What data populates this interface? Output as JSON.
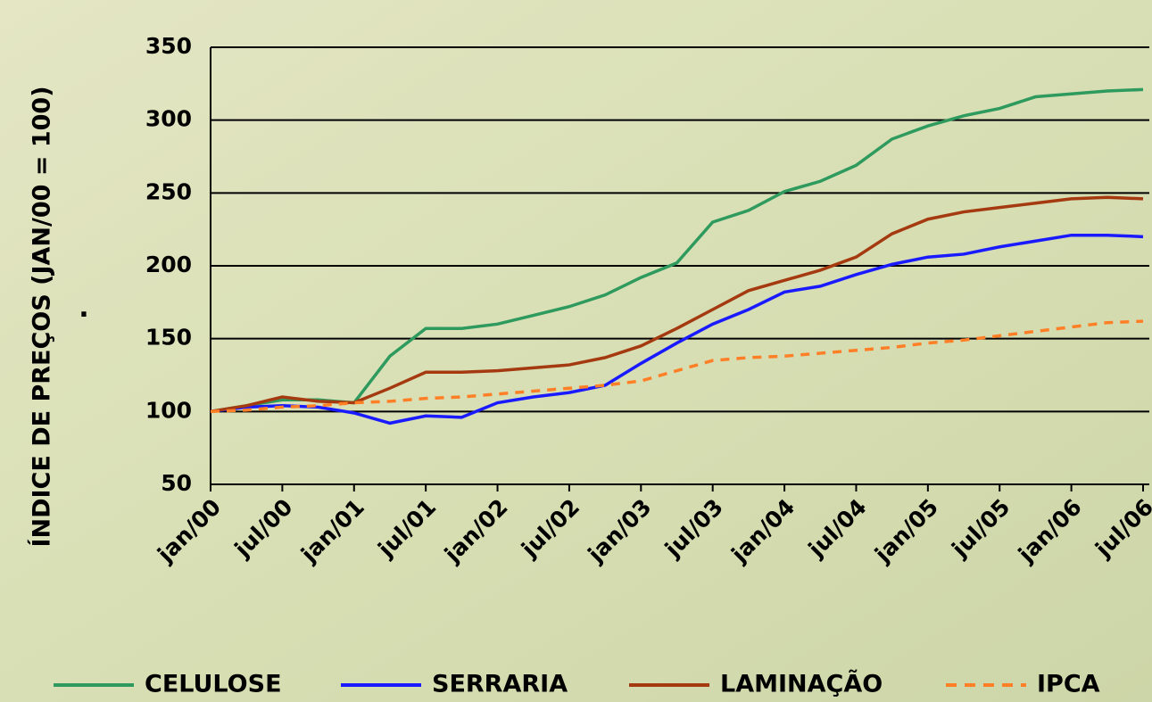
{
  "chart_data": {
    "type": "line",
    "y_label": "ÍNDICE DE PREÇOS (JAN/00 = 100)",
    "y_label_note": ".",
    "categories": [
      "jan/00",
      null,
      "jul/00",
      null,
      "jan/01",
      null,
      "jul/01",
      null,
      "jan/02",
      null,
      "jul/02",
      null,
      "jan/03",
      null,
      "jul/03",
      null,
      "jan/04",
      null,
      "jul/04",
      null,
      "jan/05",
      null,
      "jul/05",
      null,
      "jan/06",
      null,
      "jul/06"
    ],
    "ylim": [
      50,
      350
    ],
    "yticks": [
      50,
      100,
      150,
      200,
      250,
      300,
      350
    ],
    "grid": true,
    "legend": "bottom",
    "series": [
      {
        "name": "CELULOSE",
        "color": "#2e9a5e",
        "dash": false,
        "values": [
          100,
          104,
          108,
          108,
          106,
          138,
          157,
          157,
          160,
          166,
          172,
          180,
          192,
          202,
          230,
          238,
          251,
          258,
          269,
          287,
          296,
          303,
          308,
          316,
          318,
          320,
          321
        ]
      },
      {
        "name": "SERRARIA",
        "color": "#1a1aff",
        "dash": false,
        "values": [
          100,
          103,
          104,
          103,
          99,
          92,
          97,
          96,
          106,
          110,
          113,
          118,
          133,
          147,
          160,
          170,
          182,
          186,
          194,
          201,
          206,
          208,
          213,
          217,
          221,
          221,
          220
        ]
      },
      {
        "name": "LAMINAÇÃO",
        "color": "#a53a10",
        "dash": false,
        "values": [
          100,
          104,
          110,
          107,
          106,
          116,
          127,
          127,
          128,
          130,
          132,
          137,
          145,
          157,
          170,
          183,
          190,
          197,
          206,
          222,
          232,
          237,
          240,
          243,
          246,
          247,
          246
        ]
      },
      {
        "name": "IPCA",
        "color": "#ff7f27",
        "dash": true,
        "values": [
          100,
          101,
          103,
          104,
          106,
          107,
          109,
          110,
          112,
          114,
          116,
          118,
          121,
          128,
          135,
          137,
          138,
          140,
          142,
          144,
          147,
          149,
          152,
          155,
          158,
          161,
          162
        ]
      }
    ]
  }
}
